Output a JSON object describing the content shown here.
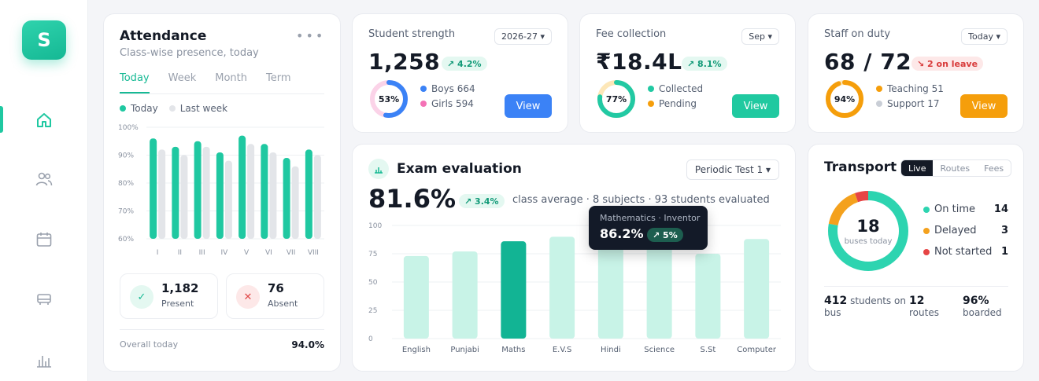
{
  "sidebar": {
    "logo": "S",
    "items": [
      {
        "icon": "home-icon",
        "active": true
      },
      {
        "icon": "users-icon",
        "active": false
      },
      {
        "icon": "calendar-icon",
        "active": false
      },
      {
        "icon": "bus-icon",
        "active": false
      },
      {
        "icon": "bar-chart-icon",
        "active": false
      }
    ]
  },
  "attendance": {
    "title": "Attendance",
    "subtitle": "Class-wise presence, today",
    "tabs": [
      "Today",
      "Week",
      "Month",
      "Term"
    ],
    "legend": {
      "today": "Today",
      "last_week": "Last week"
    },
    "present_value": "1,182",
    "present_label": "Present",
    "absent_value": "76",
    "absent_label": "Absent",
    "footer_label": "Overall today",
    "footer_value": "94.0%"
  },
  "kpis": {
    "strength": {
      "title": "Student strength",
      "select": "2026-27 ▾",
      "value": "1,258",
      "badge": "↗ 4.2%",
      "ring_label": "53%",
      "ring_fraction": 0.53,
      "legend": [
        "Boys 664",
        "Girls 594"
      ],
      "button": "View"
    },
    "fee": {
      "title": "Fee collection",
      "select": "Sep ▾",
      "value": "₹18.4L",
      "badge": "↗ 8.1%",
      "ring_label": "77%",
      "ring_fraction": 0.77,
      "legend": [
        "Collected",
        "Pending"
      ],
      "button": "View"
    },
    "staff": {
      "title": "Staff on duty",
      "select": "Today ▾",
      "value": "68 / 72",
      "badge": "↘ 2 on leave",
      "ring_label": "94%",
      "ring_fraction": 0.94,
      "legend": [
        "Teaching 51",
        "Support 17"
      ],
      "button": "View"
    }
  },
  "exam": {
    "title": "Exam evaluation",
    "select": "Periodic Test 1 ▾",
    "value": "81.6%",
    "badge": "↗ 3.4%",
    "description": "class average · 8 subjects · 93 students evaluated",
    "tooltip": {
      "subtitle": "Mathematics · Inventor",
      "value": "86.2%",
      "badge": "↗ 5%"
    }
  },
  "transport": {
    "title": "Transport",
    "tabs": [
      "Live",
      "Routes",
      "Fees"
    ],
    "center_value": "18",
    "center_label": "buses today",
    "legend": [
      {
        "label": "On time",
        "value": "14",
        "color": "#2dd4b0"
      },
      {
        "label": "Delayed",
        "value": "3",
        "color": "#f4a11d"
      },
      {
        "label": "Not started",
        "value": "1",
        "color": "#e64545"
      }
    ],
    "stats": [
      {
        "value": "412",
        "label": "students on bus"
      },
      {
        "value": "12",
        "label": "routes"
      },
      {
        "value": "96%",
        "label": "boarded"
      }
    ]
  },
  "colors": {
    "accent": "#1fc8a1",
    "blue": "#3b82f6",
    "pink": "#f472b6",
    "orange": "#f59e0b",
    "grey": "#c9ced6",
    "teal_dark": "#12b494",
    "teal_light": "#c8f3e7"
  },
  "chart_data": [
    {
      "type": "bar",
      "categories": [
        "I",
        "II",
        "III",
        "IV",
        "V",
        "VI",
        "VII",
        "VIII"
      ],
      "series": [
        {
          "name": "Today",
          "values": [
            96,
            93,
            95,
            91,
            97,
            94,
            89,
            92
          ]
        },
        {
          "name": "Last week",
          "values": [
            92,
            90,
            93,
            88,
            94,
            91,
            86,
            90
          ]
        }
      ],
      "yticks": [
        "100%",
        "90%",
        "80%",
        "70%",
        "60%"
      ],
      "ylim": [
        60,
        100
      ]
    },
    {
      "type": "bar",
      "categories": [
        "English",
        "Punjabi",
        "Maths",
        "E.V.S",
        "Hindi",
        "Science",
        "S.St",
        "Computer"
      ],
      "values": [
        73,
        77,
        86,
        90,
        85,
        82,
        75,
        88
      ],
      "highlight": "Maths",
      "yticks": [
        "100",
        "75",
        "50",
        "25",
        "0"
      ],
      "ylim": [
        0,
        100
      ]
    }
  ]
}
